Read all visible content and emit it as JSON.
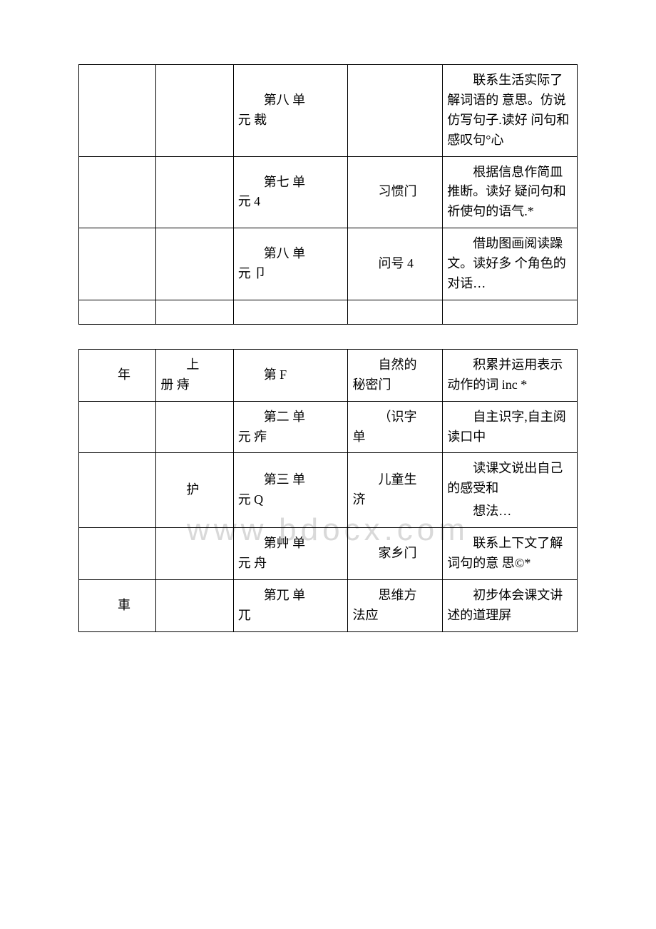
{
  "watermark": "www.bdocx.com",
  "table1": {
    "rows": [
      {
        "c1": "",
        "c2": "",
        "c3a": "第八 单",
        "c3b": "元 裁",
        "c4": "",
        "c5": "联系生活实际了解词语的 意思。仿说仿写句子.读好 问句和感叹句°心"
      },
      {
        "c1": "",
        "c2": "",
        "c3a": "第七 单",
        "c3b": "元 4",
        "c4": "习惯门",
        "c5": "根据信息作简皿推断。读好 疑问句和祈使句的语气.*"
      },
      {
        "c1": "",
        "c2": "",
        "c3a": "第八 单",
        "c3b": "元 卩",
        "c4": "问号 4",
        "c5": "借助图画阅读躁文。读好多 个角色的对话…"
      }
    ]
  },
  "table2": {
    "rows": [
      {
        "c1": "年",
        "c2a": "上",
        "c2b": "册 痔",
        "c3": "第 F",
        "c4a": "自然的",
        "c4b": "秘密门",
        "c5": "积累并运用表示动作的词 inc *"
      },
      {
        "c1": "",
        "c2": "",
        "c3a": "第二 单",
        "c3b": "元 痄",
        "c4a": "（识字",
        "c4b": "单",
        "c5": "自主识字,自主阅读口中"
      },
      {
        "c1": "",
        "c2": "护",
        "c3a": "第三 单",
        "c3b": "元 Q",
        "c4a": "儿童生",
        "c4b": "济",
        "c5": "读课文说出自己的感受和",
        "c5b": "想法…"
      },
      {
        "c1": "",
        "c2": "",
        "c3a": "第艸 单",
        "c3b": "元 舟",
        "c4": "家乡门",
        "c5": "联系上下文了解词句的意 思©*"
      },
      {
        "c1": "車",
        "c2": "",
        "c3a": "第兀 单",
        "c3b": "兀",
        "c4a": "思维方",
        "c4b": "法应",
        "c5": "初步体会课文讲述的道理屏"
      }
    ]
  }
}
